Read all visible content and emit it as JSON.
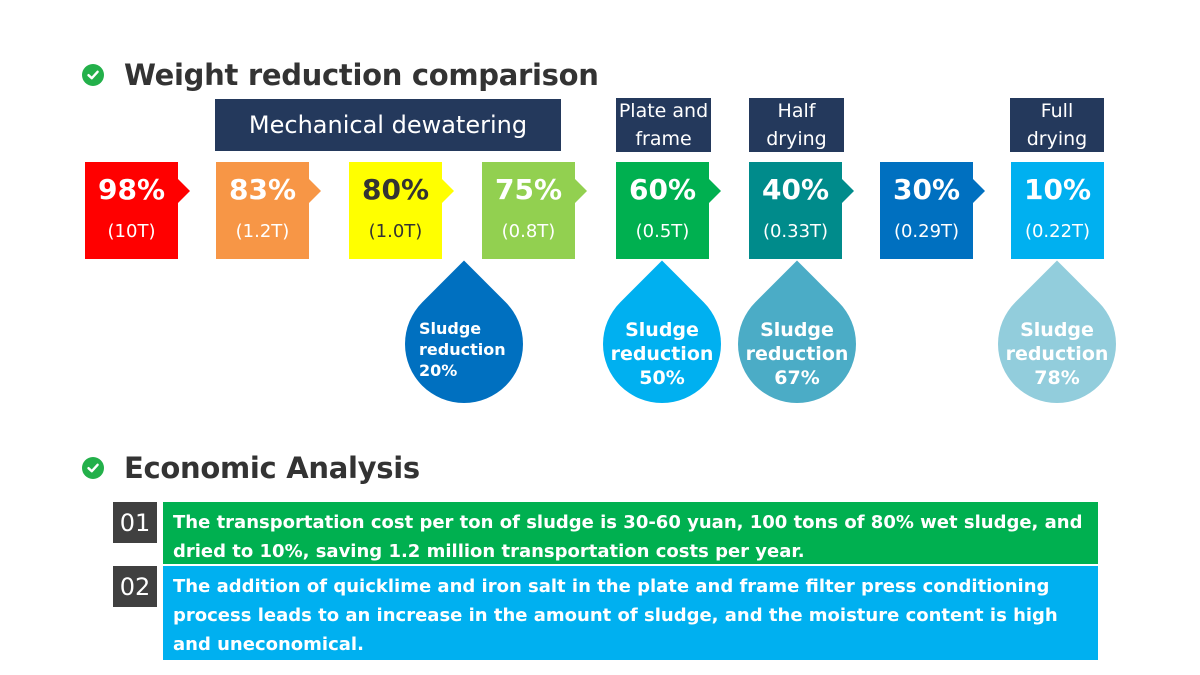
{
  "section1": {
    "title": "Weight reduction comparison",
    "icon": "check-circle-icon"
  },
  "labels": {
    "mechanical": "Mechanical dewatering",
    "plate_frame": "Plate and\nframe",
    "half_drying": "Half\ndrying",
    "full_drying": "Full\ndrying"
  },
  "steps": [
    {
      "pct": "98%",
      "weight": "(10T)",
      "color": "#ff0000",
      "pct_color": "#ffffff",
      "weight_color": "#ffffff"
    },
    {
      "pct": "83%",
      "weight": "(1.2T)",
      "color": "#f79646",
      "pct_color": "#ffffff",
      "weight_color": "#ffffff"
    },
    {
      "pct": "80%",
      "weight": "(1.0T)",
      "color": "#ffff00",
      "pct_color": "#333333",
      "weight_color": "#333333"
    },
    {
      "pct": "75%",
      "weight": "(0.8T)",
      "color": "#92d050",
      "pct_color": "#ffffff",
      "weight_color": "#ffffff"
    },
    {
      "pct": "60%",
      "weight": "(0.5T)",
      "color": "#00b050",
      "pct_color": "#ffffff",
      "weight_color": "#ffffff"
    },
    {
      "pct": "40%",
      "weight": "(0.33T)",
      "color": "#008b8b",
      "pct_color": "#ffffff",
      "weight_color": "#ffffff"
    },
    {
      "pct": "30%",
      "weight": "(0.29T)",
      "color": "#0070c0",
      "pct_color": "#ffffff",
      "weight_color": "#ffffff"
    },
    {
      "pct": "10%",
      "weight": "(0.22T)",
      "color": "#00b0f0",
      "pct_color": "#ffffff",
      "weight_color": "#ffffff"
    }
  ],
  "drops": [
    {
      "text": "Sludge\nreduction\n20%",
      "color": "#0070c0"
    },
    {
      "text": "Sludge\nreduction\n50%",
      "color": "#00b0f0"
    },
    {
      "text": "Sludge\nreduction\n67%",
      "color": "#4bacc6"
    },
    {
      "text": "Sludge\nreduction\n78%",
      "color": "#92cddc"
    }
  ],
  "section2": {
    "title": "Economic Analysis",
    "icon": "check-circle-icon"
  },
  "analysis": [
    {
      "num": "01",
      "text": "The transportation cost per ton of sludge is 30-60 yuan, 100 tons of 80% wet sludge, and dried to 10%, saving 1.2 million transportation costs per year.",
      "color": "#00b050"
    },
    {
      "num": "02",
      "text": "The addition of quicklime and iron salt in the plate and frame filter press conditioning process leads to an increase in the amount of sludge, and the moisture content is high and uneconomical.",
      "color": "#00b0f0"
    }
  ]
}
